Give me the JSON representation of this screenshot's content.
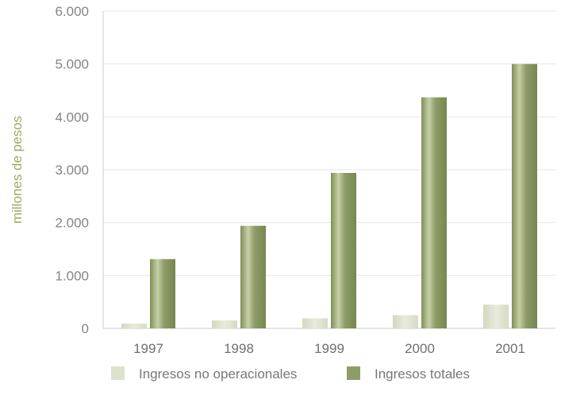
{
  "chart_data": {
    "type": "bar",
    "title": "",
    "xlabel": "",
    "ylabel": "millones de pesos",
    "ylim": [
      0,
      6000
    ],
    "yticks": [
      0,
      1000,
      2000,
      3000,
      4000,
      5000,
      6000
    ],
    "ytick_labels": [
      "0",
      "1.000",
      "2.000",
      "3.000",
      "4.000",
      "5.000",
      "6.000"
    ],
    "categories": [
      "1997",
      "1998",
      "1999",
      "2000",
      "2001"
    ],
    "series": [
      {
        "name": "Ingresos no operacionales",
        "values": [
          90,
          150,
          190,
          250,
          450
        ],
        "color": "#dde2cc"
      },
      {
        "name": "Ingresos totales",
        "values": [
          1310,
          1940,
          2940,
          4370,
          5000
        ],
        "color": "#8e9d68"
      }
    ],
    "grid": true,
    "legend": "bottom"
  }
}
